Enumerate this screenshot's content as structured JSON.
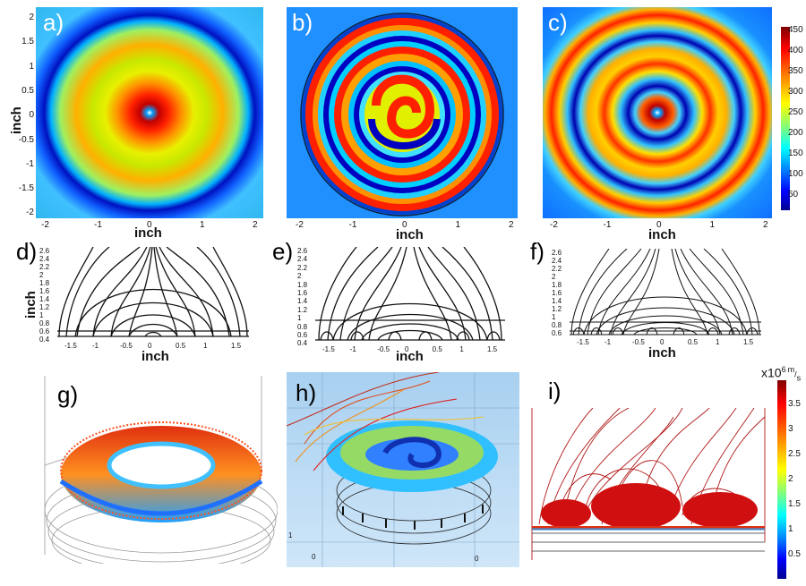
{
  "panels": {
    "a": {
      "label": "a)"
    },
    "b": {
      "label": "b)"
    },
    "c": {
      "label": "c)"
    },
    "d": {
      "label": "d)"
    },
    "e": {
      "label": "e)"
    },
    "f": {
      "label": "f)"
    },
    "g": {
      "label": "g)"
    },
    "h": {
      "label": "h)"
    },
    "i": {
      "label": "i)"
    }
  },
  "axes": {
    "inch": "inch",
    "top_yticks": [
      "2",
      "1.5",
      "1",
      "0.5",
      "0",
      "-0.5",
      "-1",
      "-1.5",
      "-2"
    ],
    "top_xticks": [
      "-2",
      "-1",
      "0",
      "1",
      "2"
    ],
    "mid_yticks_de": [
      "2.6",
      "2.4",
      "2.2",
      "2",
      "1.8",
      "1.6",
      "1.4",
      "1.2",
      "1",
      "0.8",
      "0.6",
      "0.4"
    ],
    "mid_yticks_f": [
      "2.6",
      "2.4",
      "2.2",
      "2",
      "1.8",
      "1.6",
      "1.4",
      "1.2",
      "1",
      "0.8",
      "0.6"
    ],
    "mid_xticks": [
      "-1.5",
      "-1",
      "-0.5",
      "0",
      "0.5",
      "1",
      "1.5"
    ]
  },
  "colorbar_top": {
    "ticks": [
      "450",
      "400",
      "350",
      "300",
      "250",
      "200",
      "150",
      "100",
      "50"
    ],
    "colors": [
      "#7f0000",
      "#ff0000",
      "#ff8c00",
      "#ffff00",
      "#7fff7f",
      "#00ffff",
      "#0080ff",
      "#0000ff",
      "#00008f"
    ]
  },
  "colorbar_bottom": {
    "title_base": "x10",
    "title_exp": "6",
    "title_unit_num": "m",
    "title_unit_den": "s",
    "ticks": [
      "3.5",
      "3",
      "2.5",
      "2",
      "1.5",
      "1",
      "0.5"
    ]
  },
  "panel_h_ticks": {
    "one": "1",
    "zero_left": "0",
    "zero_right": "0"
  }
}
